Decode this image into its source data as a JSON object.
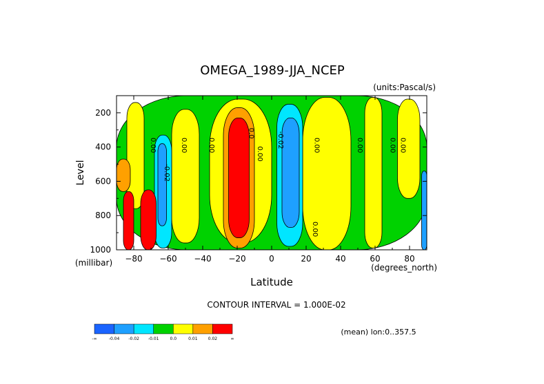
{
  "chart_data": {
    "type": "heatmap",
    "title": "OMEGA_1989-JJA_NCEP",
    "units": "(units:Pascal/s)",
    "xlabel": "Latitude",
    "ylabel": "Level",
    "x_unit_label": "(degrees_north)",
    "y_unit_label": "(millibar)",
    "xlim": [
      -90,
      90
    ],
    "ylim": [
      1000,
      100
    ],
    "x_ticks": [
      -80,
      -60,
      -40,
      -20,
      0,
      20,
      40,
      60,
      80
    ],
    "y_ticks": [
      200,
      400,
      600,
      800,
      1000
    ],
    "contour_interval_text": "CONTOUR INTERVAL = 1.000E-02",
    "mean_text": "(mean) lon:0..357.5",
    "contour_labels": [
      {
        "text": "0.00",
        "lat": -70,
        "lev": 390
      },
      {
        "text": "0.00",
        "lat": -52,
        "lev": 390
      },
      {
        "text": "0.00",
        "lat": -36,
        "lev": 390
      },
      {
        "text": "-0.02",
        "lat": -62,
        "lev": 550
      },
      {
        "text": "0.0",
        "lat": -13,
        "lev": 320
      },
      {
        "text": "0.00",
        "lat": -8,
        "lev": 440
      },
      {
        "text": "-0.02",
        "lat": 4,
        "lev": 360
      },
      {
        "text": "0.00",
        "lat": 25,
        "lev": 390
      },
      {
        "text": "0.00",
        "lat": 50,
        "lev": 390
      },
      {
        "text": "0.00",
        "lat": 69,
        "lev": 390
      },
      {
        "text": "0.00",
        "lat": 75,
        "lev": 390
      },
      {
        "text": "0.00",
        "lat": 24,
        "lev": 880
      }
    ],
    "colorbar": {
      "colors": [
        "#1a64ff",
        "#1ea0ff",
        "#00e6ff",
        "#00d200",
        "#ffff00",
        "#ffa000",
        "#ff0000"
      ],
      "labels": [
        "-∞",
        "-0.04",
        "-0.02",
        "-0.01",
        "0.0",
        "0.01",
        "0.02",
        "∞"
      ]
    },
    "regions": [
      {
        "level": "green",
        "lat": [
          -90,
          90
        ],
        "lev": [
          100,
          1000
        ]
      },
      {
        "level": "yellow",
        "lat": [
          -84,
          -74
        ],
        "lev": [
          140,
          760
        ]
      },
      {
        "level": "yellow",
        "lat": [
          -58,
          -42
        ],
        "lev": [
          180,
          960
        ]
      },
      {
        "level": "yellow",
        "lat": [
          -36,
          0
        ],
        "lev": [
          120,
          960
        ]
      },
      {
        "level": "yellow",
        "lat": [
          18,
          46
        ],
        "lev": [
          110,
          1000
        ]
      },
      {
        "level": "yellow",
        "lat": [
          54,
          64
        ],
        "lev": [
          110,
          990
        ]
      },
      {
        "level": "yellow",
        "lat": [
          73,
          86
        ],
        "lev": [
          120,
          700
        ]
      },
      {
        "level": "orange",
        "lat": [
          -28,
          -10
        ],
        "lev": [
          170,
          990
        ]
      },
      {
        "level": "red",
        "lat": [
          -25,
          -13
        ],
        "lev": [
          230,
          930
        ]
      },
      {
        "level": "cyan",
        "lat": [
          -68,
          -58
        ],
        "lev": [
          330,
          990
        ]
      },
      {
        "level": "sky",
        "lat": [
          -66,
          -61
        ],
        "lev": [
          380,
          860
        ]
      },
      {
        "level": "cyan",
        "lat": [
          3,
          18
        ],
        "lev": [
          150,
          980
        ]
      },
      {
        "level": "sky",
        "lat": [
          6,
          16
        ],
        "lev": [
          230,
          870
        ]
      },
      {
        "level": "sky",
        "lat": [
          87,
          90
        ],
        "lev": [
          540,
          1000
        ]
      },
      {
        "level": "orange",
        "lat": [
          -90,
          -82
        ],
        "lev": [
          470,
          660
        ]
      },
      {
        "level": "red",
        "lat": [
          -76,
          -67
        ],
        "lev": [
          650,
          1000
        ]
      },
      {
        "level": "red",
        "lat": [
          -86,
          -80
        ],
        "lev": [
          660,
          1000
        ]
      }
    ]
  }
}
